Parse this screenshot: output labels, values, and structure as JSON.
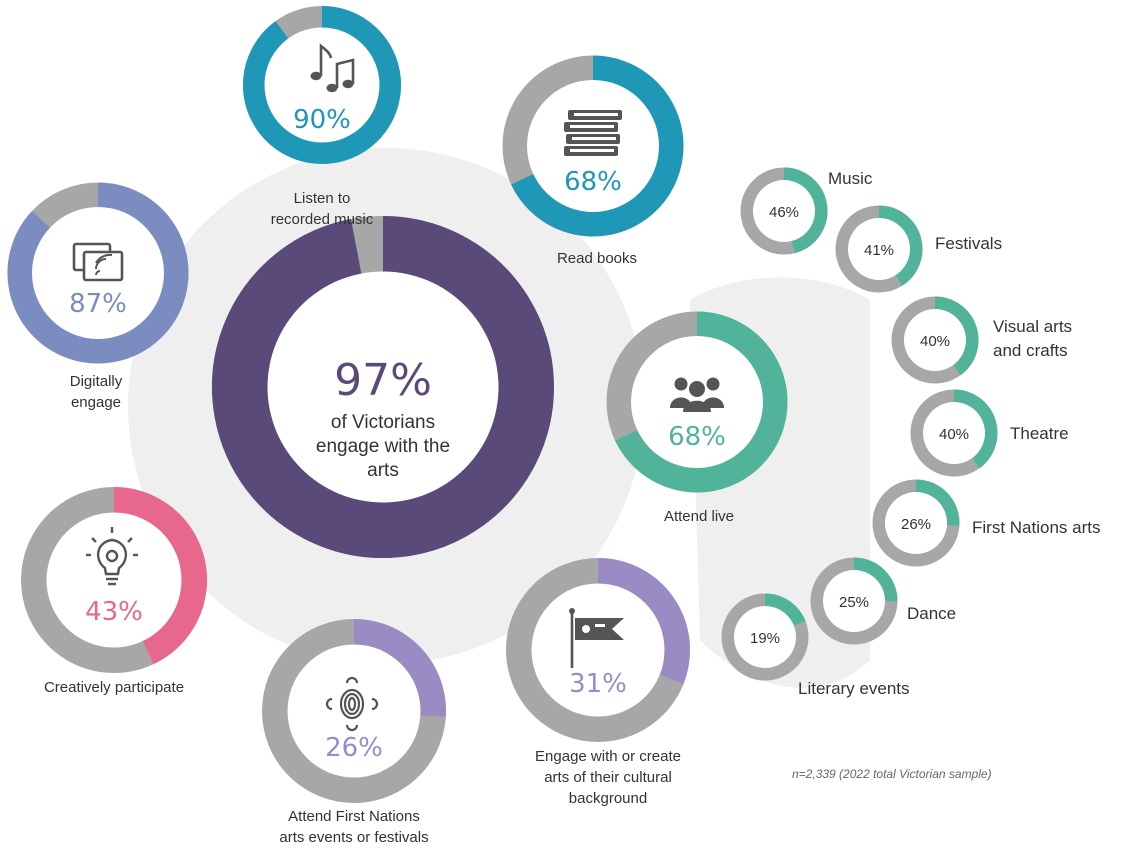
{
  "chart_data": {
    "type": "donut",
    "colors": {
      "remainder": "#a7a7a7",
      "main": "#5a4a7a",
      "digital": "#7b8cc1",
      "music": "#1f97b7",
      "books": "#1f97b7",
      "live": "#52b39b",
      "creative": "#e8678c",
      "first_nations": "#9b8bc4",
      "cultural": "#9b8bc4",
      "background_blob": "#efefef"
    },
    "main": {
      "value": 97,
      "label": "97%",
      "lines": [
        "of Victorians",
        "engage with the",
        "arts"
      ]
    },
    "categories": [
      {
        "key": "music",
        "value": 90,
        "label": "90%",
        "lines": [
          "Listen to",
          "recorded music"
        ],
        "icon": "music-notes-icon"
      },
      {
        "key": "books",
        "value": 68,
        "label": "68%",
        "lines": [
          "Read books"
        ],
        "icon": "books-icon"
      },
      {
        "key": "digital",
        "value": 87,
        "label": "87%",
        "lines": [
          "Digitally",
          "engage"
        ],
        "icon": "screen-cast-icon"
      },
      {
        "key": "live",
        "value": 68,
        "label": "68%",
        "lines": [
          "Attend live"
        ],
        "icon": "audience-icon"
      },
      {
        "key": "creative",
        "value": 43,
        "label": "43%",
        "lines": [
          "Creatively participate"
        ],
        "icon": "lightbulb-icon"
      },
      {
        "key": "first_nations",
        "value": 26,
        "label": "26%",
        "lines": [
          "Attend First Nations",
          "arts events or festivals"
        ],
        "icon": "first-nations-symbol-icon"
      },
      {
        "key": "cultural",
        "value": 31,
        "label": "31%",
        "lines": [
          "Engage with or create",
          "arts of their cultural",
          "background"
        ],
        "icon": "flag-icon"
      }
    ],
    "live_breakdown": [
      {
        "name": "Music",
        "value": 46,
        "label": "46%"
      },
      {
        "name": "Festivals",
        "value": 41,
        "label": "41%"
      },
      {
        "name": "Visual arts and crafts",
        "lines": [
          "Visual arts",
          "and crafts"
        ],
        "value": 40,
        "label": "40%"
      },
      {
        "name": "Theatre",
        "value": 40,
        "label": "40%"
      },
      {
        "name": "First Nations arts",
        "value": 26,
        "label": "26%"
      },
      {
        "name": "Dance",
        "value": 25,
        "label": "25%"
      },
      {
        "name": "Literary events",
        "value": 19,
        "label": "19%"
      }
    ],
    "note": "n=2,339 (2022 total Victorian sample)"
  }
}
